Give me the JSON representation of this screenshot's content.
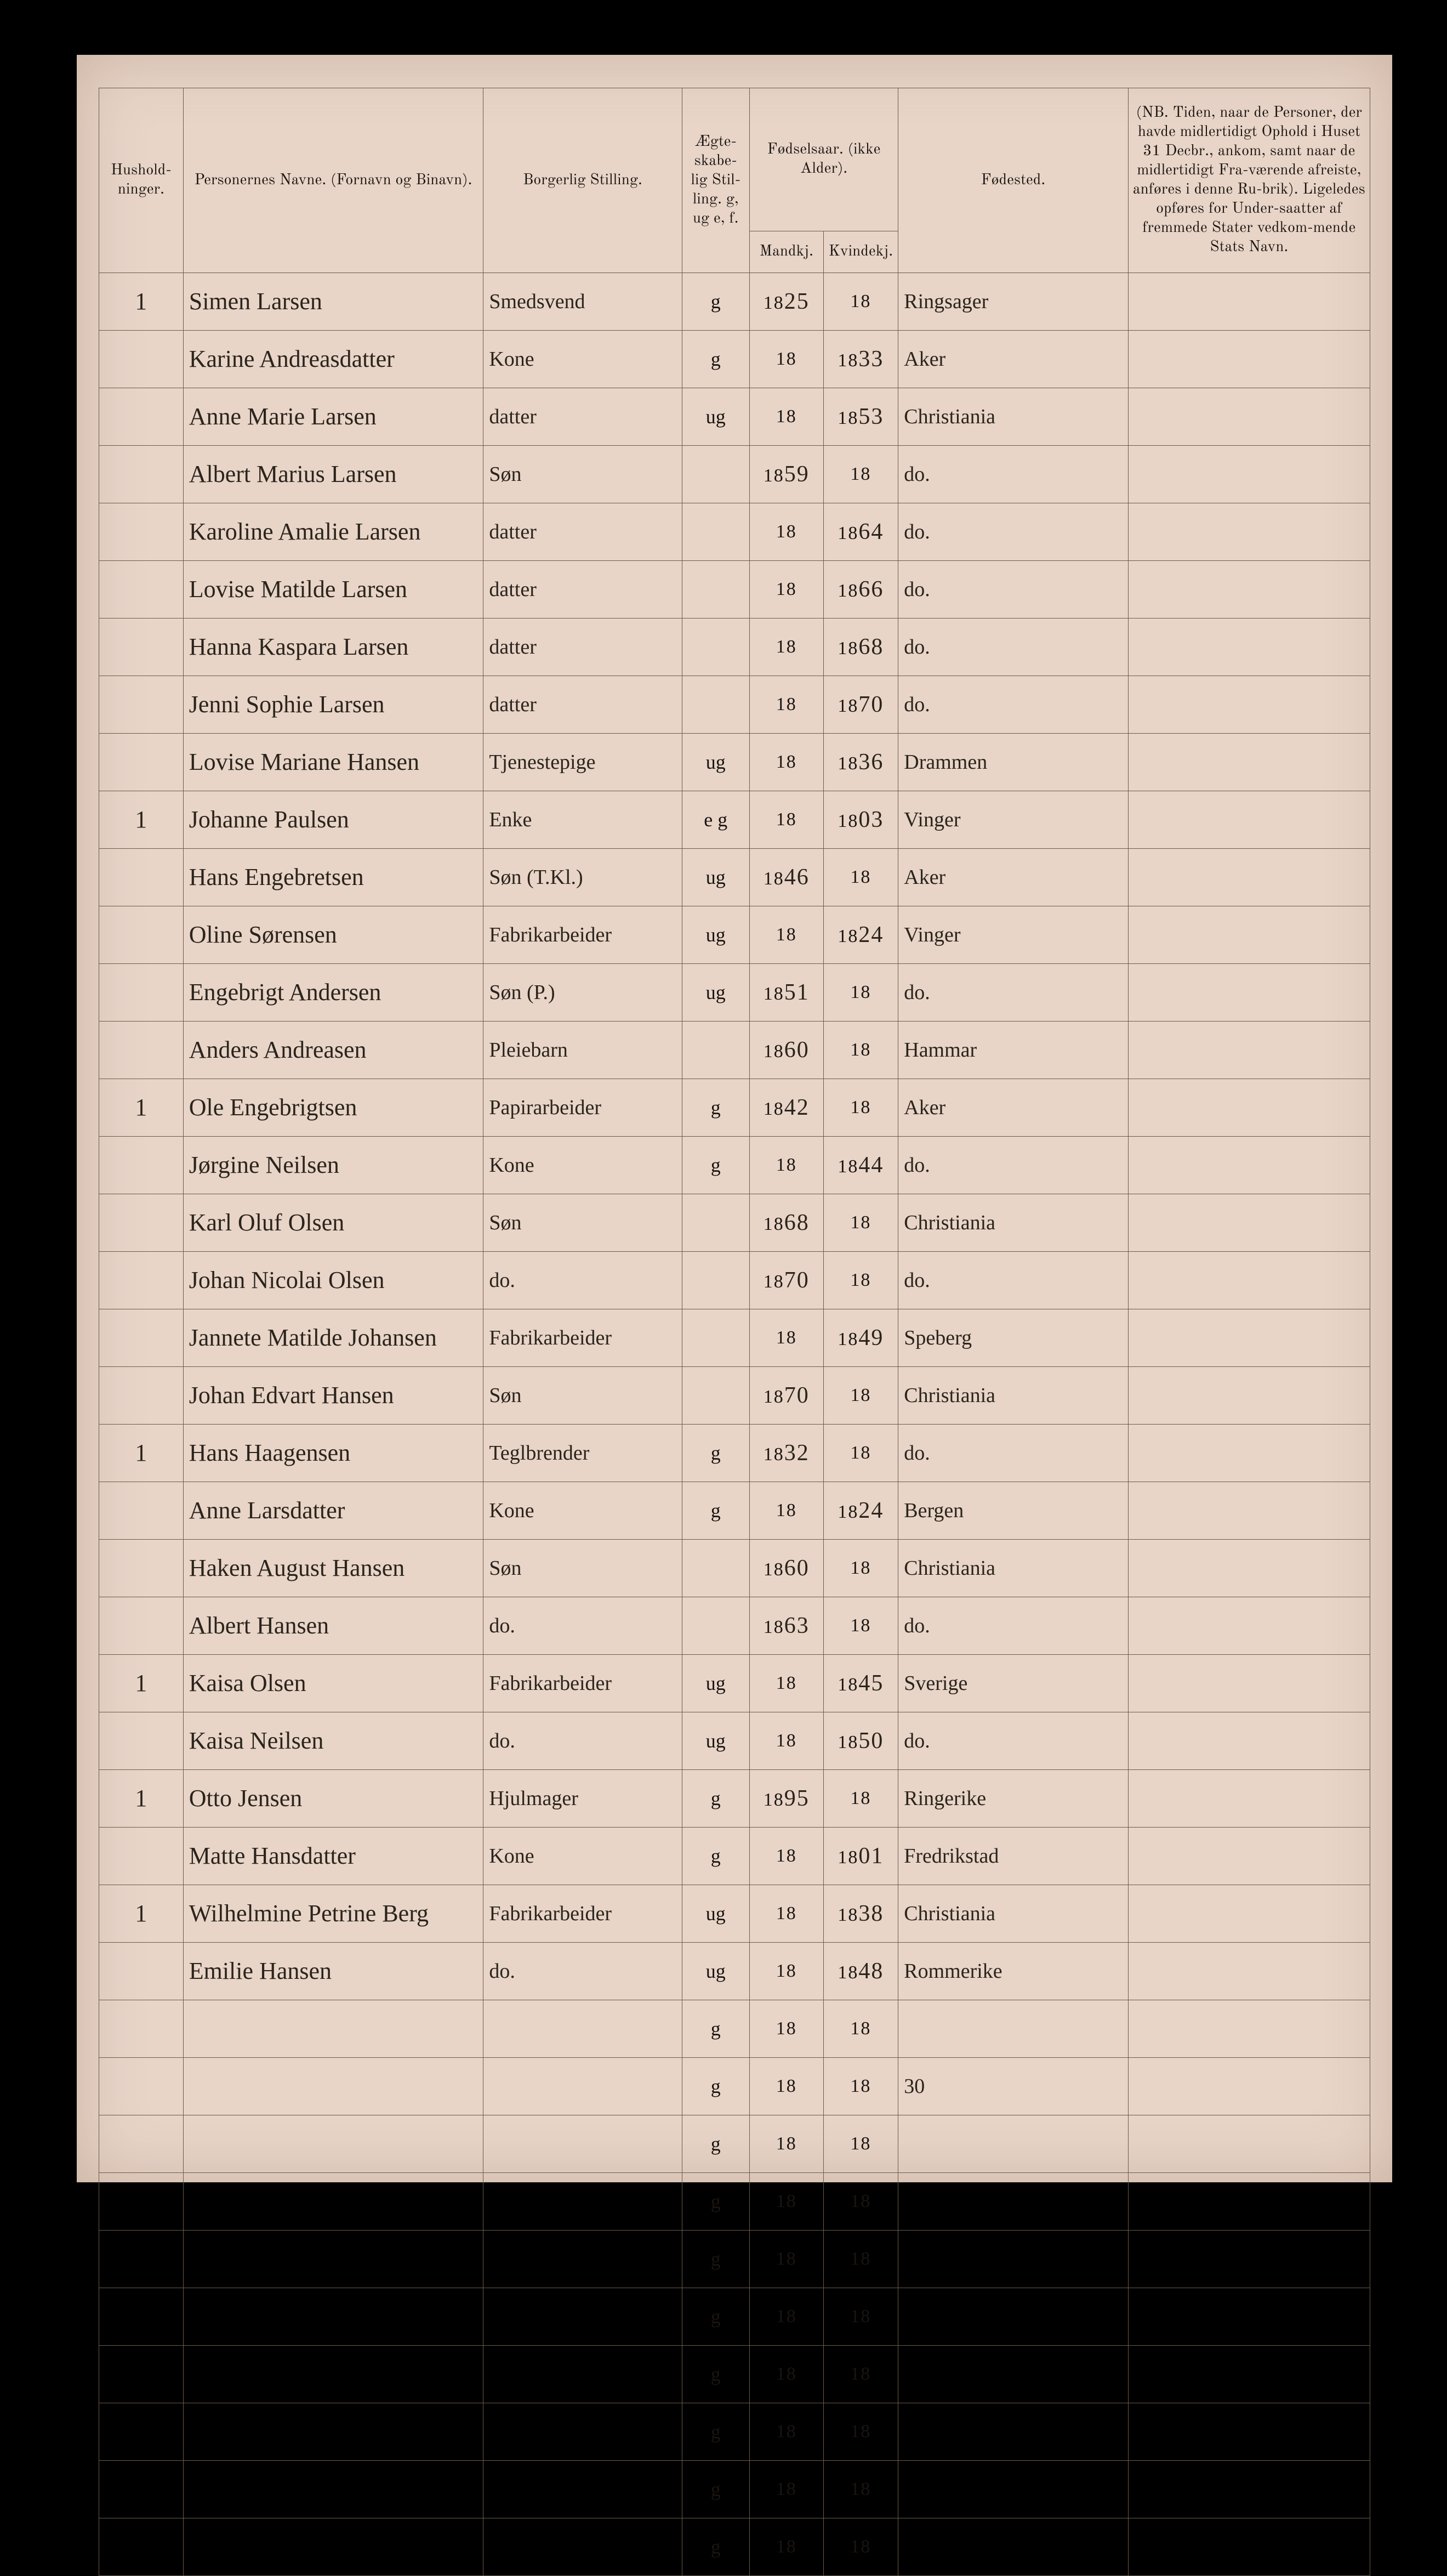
{
  "background_color": "#000000",
  "paper_color": "#e8d5c8",
  "ink_color": "#2b241c",
  "rule_color": "#6b5a4a",
  "headers": {
    "hushold": "Hushold-\nninger.",
    "name": "Personernes Navne.\n(Fornavn og Binavn).",
    "stilling": "Borgerlig Stilling.",
    "egte": "Ægte-\nskabe-\nlig\nStil-\nling.\ng, ug\ne, f.",
    "fodselsaar": "Fødselsaar.\n(ikke Alder).",
    "mandkj": "Mandkj.",
    "kvindekj": "Kvindekj.",
    "fodested": "Fødested.",
    "nb": "(NB. Tiden, naar de Personer, der havde midlertidigt Ophold i Huset 31 Decbr., ankom, samt naar de midlertidigt Fra-værende afreiste, anføres i denne Ru-brik). Ligeledes opføres for Under-saatter af fremmede Stater vedkom-mende Stats Navn."
  },
  "century": "18",
  "rows": [
    {
      "hush": "1",
      "name": "Simen Larsen",
      "stilling": "Smedsvend",
      "egte": "g",
      "m": "25",
      "k": "",
      "fode": "Ringsager"
    },
    {
      "hush": "",
      "name": "Karine Andreasdatter",
      "stilling": "Kone",
      "egte": "g",
      "m": "",
      "k": "33",
      "fode": "Aker"
    },
    {
      "hush": "",
      "name": "Anne Marie Larsen",
      "stilling": "datter",
      "egte": "ug",
      "m": "",
      "k": "53",
      "fode": "Christiania"
    },
    {
      "hush": "",
      "name": "Albert Marius Larsen",
      "stilling": "Søn",
      "egte": "",
      "m": "59",
      "k": "",
      "fode": "do."
    },
    {
      "hush": "",
      "name": "Karoline Amalie Larsen",
      "stilling": "datter",
      "egte": "",
      "m": "",
      "k": "64",
      "fode": "do."
    },
    {
      "hush": "",
      "name": "Lovise Matilde Larsen",
      "stilling": "datter",
      "egte": "",
      "m": "",
      "k": "66",
      "fode": "do."
    },
    {
      "hush": "",
      "name": "Hanna Kaspara Larsen",
      "stilling": "datter",
      "egte": "",
      "m": "",
      "k": "68",
      "fode": "do."
    },
    {
      "hush": "",
      "name": "Jenni Sophie Larsen",
      "stilling": "datter",
      "egte": "",
      "m": "",
      "k": "70",
      "fode": "do."
    },
    {
      "hush": "",
      "name": "Lovise Mariane Hansen",
      "stilling": "Tjenestepige",
      "egte": "ug",
      "m": "",
      "k": "36",
      "fode": "Drammen"
    },
    {
      "hush": "1",
      "name": "Johanne Paulsen",
      "stilling": "Enke",
      "egte": "e g",
      "m": "",
      "k": "03",
      "fode": "Vinger"
    },
    {
      "hush": "",
      "name": "Hans Engebretsen",
      "stilling": "Søn (T.Kl.)",
      "egte": "ug",
      "m": "46",
      "k": "",
      "fode": "Aker"
    },
    {
      "hush": "",
      "name": "Oline Sørensen",
      "stilling": "Fabrikarbeider",
      "egte": "ug",
      "m": "",
      "k": "24",
      "fode": "Vinger"
    },
    {
      "hush": "",
      "name": "Engebrigt Andersen",
      "stilling": "Søn (P.)",
      "egte": "ug",
      "m": "51",
      "k": "",
      "fode": "do."
    },
    {
      "hush": "",
      "name": "Anders Andreasen",
      "stilling": "Pleiebarn",
      "egte": "",
      "m": "60",
      "k": "",
      "fode": "Hammar"
    },
    {
      "hush": "1",
      "name": "Ole Engebrigtsen",
      "stilling": "Papirarbeider",
      "egte": "g",
      "m": "42",
      "k": "",
      "fode": "Aker"
    },
    {
      "hush": "",
      "name": "Jørgine Neilsen",
      "stilling": "Kone",
      "egte": "g",
      "m": "",
      "k": "44",
      "fode": "do."
    },
    {
      "hush": "",
      "name": "Karl Oluf Olsen",
      "stilling": "Søn",
      "egte": "",
      "m": "68",
      "k": "",
      "fode": "Christiania"
    },
    {
      "hush": "",
      "name": "Johan Nicolai Olsen",
      "stilling": "do.",
      "egte": "",
      "m": "70",
      "k": "",
      "fode": "do."
    },
    {
      "hush": "",
      "name": "Jannete Matilde Johansen",
      "stilling": "Fabrikarbeider",
      "egte": "",
      "m": "",
      "k": "49",
      "fode": "Speberg"
    },
    {
      "hush": "",
      "name": "Johan Edvart Hansen",
      "stilling": "Søn",
      "egte": "",
      "m": "70",
      "k": "",
      "fode": "Christiania"
    },
    {
      "hush": "1",
      "name": "Hans Haagensen",
      "stilling": "Teglbrender",
      "egte": "g",
      "m": "32",
      "k": "",
      "fode": "do."
    },
    {
      "hush": "",
      "name": "Anne Larsdatter",
      "stilling": "Kone",
      "egte": "g",
      "m": "",
      "k": "24",
      "fode": "Bergen"
    },
    {
      "hush": "",
      "name": "Haken August Hansen",
      "stilling": "Søn",
      "egte": "",
      "m": "60",
      "k": "",
      "fode": "Christiania"
    },
    {
      "hush": "",
      "name": "Albert Hansen",
      "stilling": "do.",
      "egte": "",
      "m": "63",
      "k": "",
      "fode": "do."
    },
    {
      "hush": "1",
      "name": "Kaisa Olsen",
      "stilling": "Fabrikarbeider",
      "egte": "ug",
      "m": "",
      "k": "45",
      "fode": "Sverige"
    },
    {
      "hush": "",
      "name": "Kaisa Neilsen",
      "stilling": "do.",
      "egte": "ug",
      "m": "",
      "k": "50",
      "fode": "do."
    },
    {
      "hush": "1",
      "name": "Otto Jensen",
      "stilling": "Hjulmager",
      "egte": "g",
      "m": "95",
      "k": "",
      "fode": "Ringerike"
    },
    {
      "hush": "",
      "name": "Matte Hansdatter",
      "stilling": "Kone",
      "egte": "g",
      "m": "",
      "k": "01",
      "fode": "Fredrikstad"
    },
    {
      "hush": "1",
      "name": "Wilhelmine Petrine Berg",
      "stilling": "Fabrikarbeider",
      "egte": "ug",
      "m": "",
      "k": "38",
      "fode": "Christiania"
    },
    {
      "hush": "",
      "name": "Emilie Hansen",
      "stilling": "do.",
      "egte": "ug",
      "m": "",
      "k": "48",
      "fode": "Rommerike"
    },
    {
      "hush": "",
      "name": "",
      "stilling": "",
      "egte": "g",
      "m": "",
      "k": "",
      "fode": ""
    },
    {
      "hush": "",
      "name": "",
      "stilling": "",
      "egte": "g",
      "m": "",
      "k": "",
      "fode": "30"
    },
    {
      "hush": "",
      "name": "",
      "stilling": "",
      "egte": "g",
      "m": "",
      "k": "",
      "fode": ""
    },
    {
      "hush": "",
      "name": "",
      "stilling": "",
      "egte": "g",
      "m": "",
      "k": "",
      "fode": ""
    },
    {
      "hush": "",
      "name": "",
      "stilling": "",
      "egte": "g",
      "m": "",
      "k": "",
      "fode": ""
    },
    {
      "hush": "",
      "name": "",
      "stilling": "",
      "egte": "g",
      "m": "",
      "k": "",
      "fode": ""
    },
    {
      "hush": "",
      "name": "",
      "stilling": "",
      "egte": "g",
      "m": "",
      "k": "",
      "fode": ""
    },
    {
      "hush": "",
      "name": "",
      "stilling": "",
      "egte": "g",
      "m": "",
      "k": "",
      "fode": ""
    },
    {
      "hush": "",
      "name": "",
      "stilling": "",
      "egte": "g",
      "m": "",
      "k": "",
      "fode": ""
    },
    {
      "hush": "",
      "name": "",
      "stilling": "",
      "egte": "g",
      "m": "",
      "k": "",
      "fode": ""
    }
  ]
}
